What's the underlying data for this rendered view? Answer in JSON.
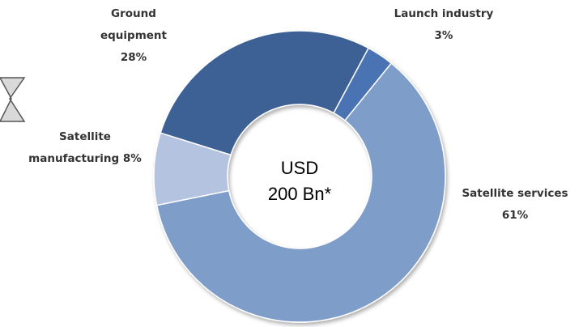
{
  "chart_data": {
    "type": "donut",
    "categories": [
      "Launch industry",
      "Satellite services",
      "Satellite manufacturing",
      "Ground equipment"
    ],
    "values": [
      3,
      61,
      8,
      28
    ],
    "value_labels": [
      "3%",
      "61%",
      "8%",
      "28%"
    ],
    "colors": [
      "#4a73b2",
      "#7f9dc9",
      "#b3c3e0",
      "#3e6195"
    ],
    "center_text": [
      "USD",
      "200 Bn*"
    ]
  }
}
